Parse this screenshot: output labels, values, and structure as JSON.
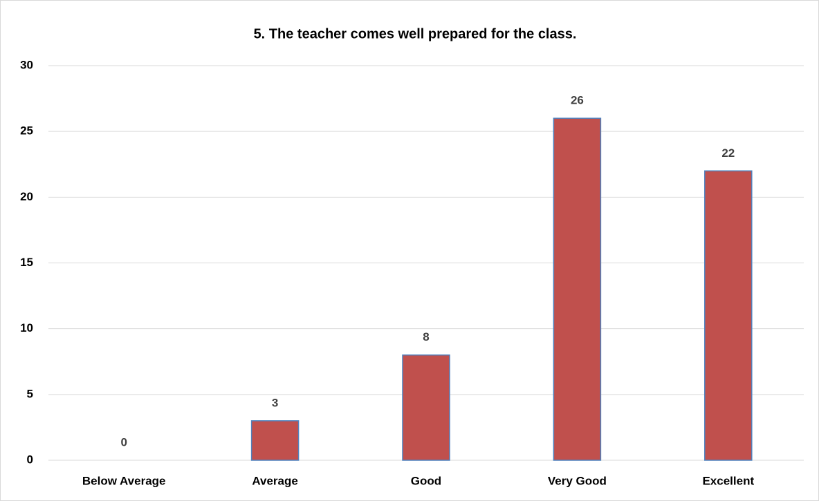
{
  "chart_data": {
    "type": "bar",
    "title": "5. The teacher comes well prepared for the class.",
    "categories": [
      "Below Average",
      "Average",
      "Good",
      "Very Good",
      "Excellent"
    ],
    "values": [
      0,
      3,
      8,
      26,
      22
    ],
    "color": "#c0504d",
    "edge_color": "#4f81bd",
    "ylim": [
      0,
      30
    ],
    "yticks": [
      0,
      5,
      10,
      15,
      20,
      25,
      30
    ],
    "grid": true
  }
}
